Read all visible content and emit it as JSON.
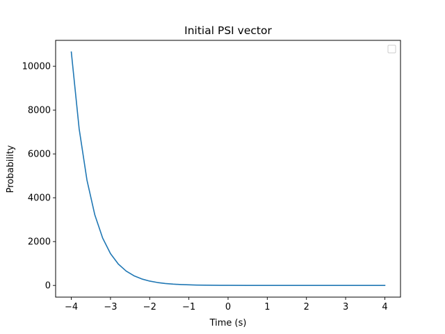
{
  "chart_data": {
    "type": "line",
    "title": "Initial PSI vector",
    "xlabel": "Time (s)",
    "ylabel": "Probability",
    "xlim": [
      -4.4,
      4.4
    ],
    "ylim": [
      -533,
      11180
    ],
    "x_ticks": [
      -4,
      -3,
      -2,
      -1,
      0,
      1,
      2,
      3,
      4
    ],
    "x_tick_labels": [
      "−4",
      "−3",
      "−2",
      "−1",
      "0",
      "1",
      "2",
      "3",
      "4"
    ],
    "y_ticks": [
      0,
      2000,
      4000,
      6000,
      8000,
      10000
    ],
    "y_tick_labels": [
      "0",
      "2000",
      "4000",
      "6000",
      "8000",
      "10000"
    ],
    "grid": false,
    "legend": {
      "position": "upper-right",
      "entries": []
    },
    "series": [
      {
        "color": "#1f77b4",
        "x": [
          -4.0,
          -3.8,
          -3.6,
          -3.4,
          -3.2,
          -3.0,
          -2.8,
          -2.6,
          -2.4,
          -2.2,
          -2.0,
          -1.8,
          -1.6,
          -1.4,
          -1.2,
          -1.0,
          -0.8,
          -0.6,
          -0.4,
          -0.2,
          0.0,
          0.5,
          1.0,
          1.5,
          2.0,
          2.5,
          3.0,
          3.5,
          4.0
        ],
        "y": [
          10650,
          7150,
          4800,
          3220,
          2160,
          1450,
          975,
          655,
          440,
          295,
          198,
          133,
          89,
          60,
          40,
          27,
          18,
          12,
          8,
          5,
          3,
          1,
          0,
          0,
          0,
          0,
          0,
          0,
          0
        ]
      }
    ]
  }
}
